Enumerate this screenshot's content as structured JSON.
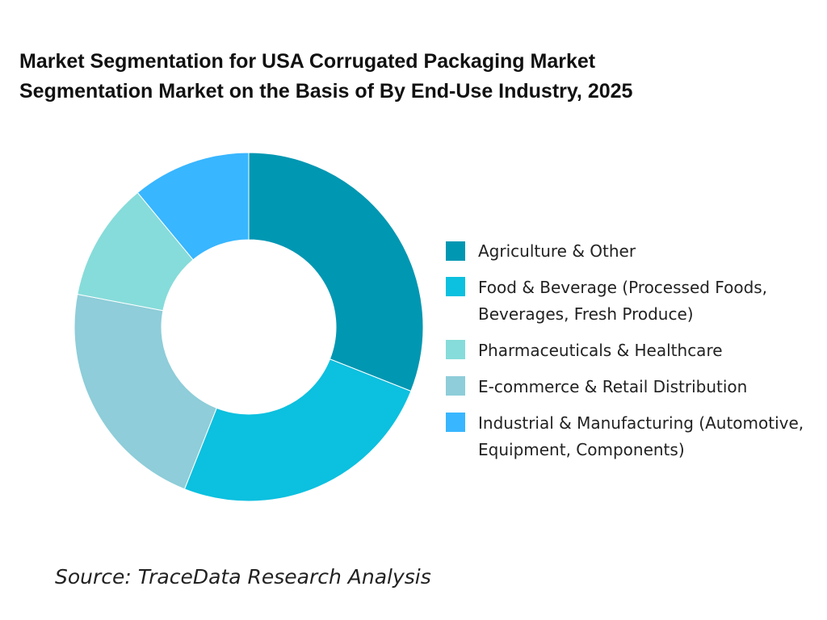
{
  "title_lines": [
    "Market Segmentation for USA Corrugated Packaging Market",
    "Segmentation Market on the Basis of By End-Use Industry, 2025"
  ],
  "source": "Source: TraceData Research Analysis",
  "chart_data": {
    "type": "pie",
    "variant": "donut",
    "title": "Market Segmentation for USA Corrugated Packaging Market Segmentation Market on the Basis of By End-Use Industry, 2025",
    "legend_position": "right",
    "series": [
      {
        "name": "Agriculture & Other",
        "value": 31,
        "color": "#0097B2"
      },
      {
        "name": "Food & Beverage (Processed Foods, Beverages, Fresh Produce)",
        "value": 25,
        "color": "#0CC0DF"
      },
      {
        "name": "Pharmaceuticals & Healthcare",
        "value": 11,
        "color": "#86DCDA"
      },
      {
        "name": "E-commerce & Retail Distribution",
        "value": 22,
        "color": "#8ECDD9"
      },
      {
        "name": "Industrial & Manufacturing (Automotive, Equipment, Components)",
        "value": 11,
        "color": "#38B6FF"
      }
    ],
    "slice_order_clockwise_from_top": [
      "Agriculture & Other",
      "Food & Beverage (Processed Foods, Beverages, Fresh Produce)",
      "E-commerce & Retail Distribution",
      "Pharmaceuticals & Healthcare",
      "Industrial & Manufacturing (Automotive, Equipment, Components)"
    ]
  },
  "legend": {
    "items": [
      {
        "label": "Agriculture & Other",
        "color": "#0097B2"
      },
      {
        "label": "Food & Beverage (Processed Foods, Beverages, Fresh Produce)",
        "color": "#0CC0DF"
      },
      {
        "label": "Pharmaceuticals & Healthcare",
        "color": "#86DCDA"
      },
      {
        "label": "E-commerce & Retail Distribution",
        "color": "#8ECDD9"
      },
      {
        "label": "Industrial & Manufacturing (Automotive, Equipment, Components)",
        "color": "#38B6FF"
      }
    ]
  }
}
